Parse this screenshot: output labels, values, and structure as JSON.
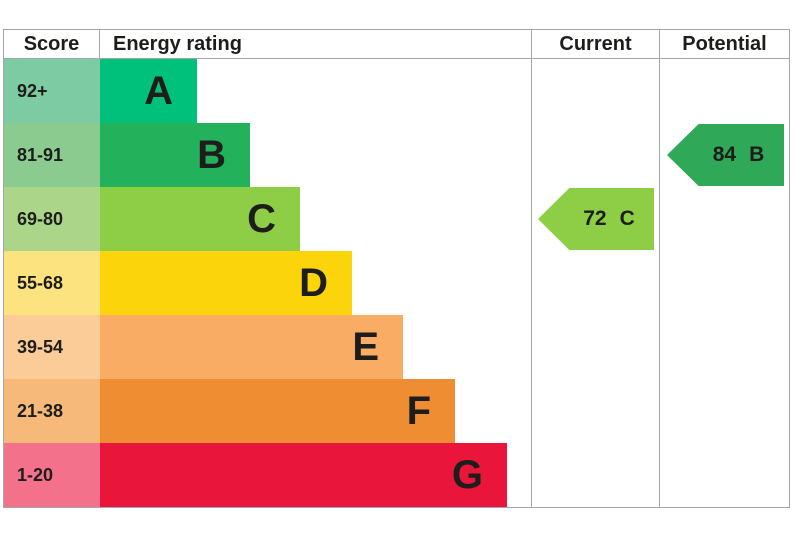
{
  "header": {
    "score": "Score",
    "energy_rating": "Energy rating",
    "current": "Current",
    "potential": "Potential"
  },
  "bands": [
    {
      "grade": "A",
      "score_range": "92+",
      "bar_color": "#00C17C",
      "score_bg": "#7CCBA2"
    },
    {
      "grade": "B",
      "score_range": "81-91",
      "bar_color": "#24B15B",
      "score_bg": "#8CCB90"
    },
    {
      "grade": "C",
      "score_range": "69-80",
      "bar_color": "#8DCE46",
      "score_bg": "#ABD689"
    },
    {
      "grade": "D",
      "score_range": "55-68",
      "bar_color": "#FCD40B",
      "score_bg": "#FCE380"
    },
    {
      "grade": "E",
      "score_range": "39-54",
      "bar_color": "#F9AC63",
      "score_bg": "#FBCC98"
    },
    {
      "grade": "F",
      "score_range": "21-38",
      "bar_color": "#EF8D33",
      "score_bg": "#F6B97A"
    },
    {
      "grade": "G",
      "score_range": "1-20",
      "bar_color": "#E9153B",
      "score_bg": "#F3718B"
    }
  ],
  "current": {
    "value": "72",
    "grade": "C",
    "color": "#8DCE46"
  },
  "potential": {
    "value": "84",
    "grade": "B",
    "color": "#2FA857"
  },
  "border_color": "#A6A6A6",
  "chart_data": {
    "type": "bar",
    "title": "Energy rating",
    "categories": [
      "A",
      "B",
      "C",
      "D",
      "E",
      "F",
      "G"
    ],
    "score_ranges": [
      "92+",
      "81-91",
      "69-80",
      "55-68",
      "39-54",
      "21-38",
      "1-20"
    ],
    "bar_colors": [
      "#00C17C",
      "#24B15B",
      "#8DCE46",
      "#FCD40B",
      "#F9AC63",
      "#EF8D33",
      "#E9153B"
    ],
    "bar_lengths_relative": [
      1,
      2,
      3,
      4,
      5,
      6,
      7
    ],
    "columns": [
      "Score",
      "Energy rating",
      "Current",
      "Potential"
    ],
    "current": {
      "score": 72,
      "rating": "C"
    },
    "potential": {
      "score": 84,
      "rating": "B"
    },
    "legend_position": "none",
    "grid": false
  }
}
